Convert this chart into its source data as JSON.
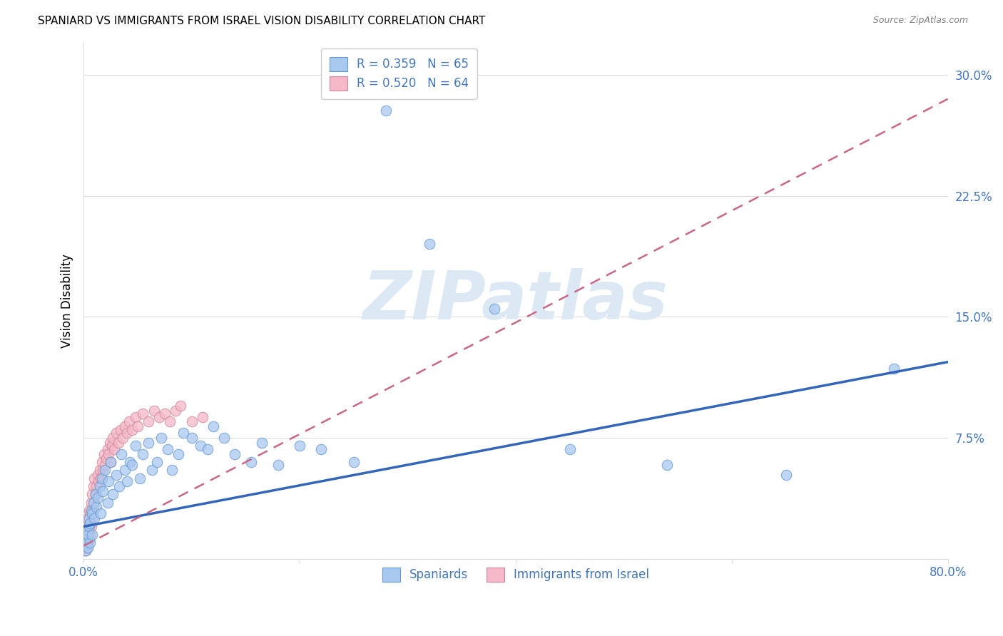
{
  "title": "SPANIARD VS IMMIGRANTS FROM ISRAEL VISION DISABILITY CORRELATION CHART",
  "source": "Source: ZipAtlas.com",
  "ylabel_label": "Vision Disability",
  "xlim": [
    0.0,
    0.8
  ],
  "ylim": [
    0.0,
    0.32
  ],
  "xticks": [
    0.0,
    0.2,
    0.4,
    0.6,
    0.8
  ],
  "xtick_labels": [
    "0.0%",
    "",
    "",
    "",
    "80.0%"
  ],
  "ytick_labels": [
    "",
    "7.5%",
    "15.0%",
    "22.5%",
    "30.0%"
  ],
  "ytick_values": [
    0.0,
    0.075,
    0.15,
    0.225,
    0.3
  ],
  "legend_blue_label": "R = 0.359   N = 65",
  "legend_pink_label": "R = 0.520   N = 64",
  "legend_spaniards": "Spaniards",
  "legend_immigrants": "Immigrants from Israel",
  "blue_color": "#a8c8f0",
  "blue_edge_color": "#6699cc",
  "blue_line_color": "#3366bb",
  "pink_color": "#f5b8c8",
  "pink_edge_color": "#cc8899",
  "pink_line_color": "#cc6688",
  "axis_color": "#4477bb",
  "watermark_color": "#dde8f5",
  "grid_color": "#dddddd",
  "spaniards_x": [
    0.001,
    0.002,
    0.002,
    0.003,
    0.003,
    0.004,
    0.004,
    0.005,
    0.005,
    0.006,
    0.006,
    0.007,
    0.008,
    0.008,
    0.009,
    0.01,
    0.011,
    0.012,
    0.013,
    0.015,
    0.016,
    0.017,
    0.018,
    0.02,
    0.022,
    0.023,
    0.025,
    0.027,
    0.03,
    0.033,
    0.035,
    0.038,
    0.04,
    0.043,
    0.045,
    0.048,
    0.052,
    0.055,
    0.06,
    0.063,
    0.068,
    0.072,
    0.078,
    0.082,
    0.088,
    0.092,
    0.1,
    0.108,
    0.115,
    0.12,
    0.13,
    0.14,
    0.155,
    0.165,
    0.18,
    0.2,
    0.22,
    0.25,
    0.28,
    0.32,
    0.38,
    0.45,
    0.54,
    0.65,
    0.75
  ],
  "spaniards_y": [
    0.008,
    0.005,
    0.012,
    0.01,
    0.018,
    0.007,
    0.015,
    0.02,
    0.025,
    0.01,
    0.022,
    0.03,
    0.015,
    0.028,
    0.035,
    0.025,
    0.04,
    0.032,
    0.038,
    0.045,
    0.028,
    0.05,
    0.042,
    0.055,
    0.035,
    0.048,
    0.06,
    0.04,
    0.052,
    0.045,
    0.065,
    0.055,
    0.048,
    0.06,
    0.058,
    0.07,
    0.05,
    0.065,
    0.072,
    0.055,
    0.06,
    0.075,
    0.068,
    0.055,
    0.065,
    0.078,
    0.075,
    0.07,
    0.068,
    0.082,
    0.075,
    0.065,
    0.06,
    0.072,
    0.058,
    0.07,
    0.068,
    0.06,
    0.278,
    0.195,
    0.155,
    0.068,
    0.058,
    0.052,
    0.118
  ],
  "immigrants_x": [
    0.0005,
    0.001,
    0.001,
    0.001,
    0.002,
    0.002,
    0.002,
    0.003,
    0.003,
    0.003,
    0.004,
    0.004,
    0.004,
    0.005,
    0.005,
    0.005,
    0.006,
    0.006,
    0.007,
    0.007,
    0.008,
    0.008,
    0.009,
    0.009,
    0.01,
    0.01,
    0.011,
    0.012,
    0.013,
    0.014,
    0.015,
    0.016,
    0.017,
    0.018,
    0.019,
    0.02,
    0.021,
    0.022,
    0.023,
    0.024,
    0.025,
    0.026,
    0.027,
    0.028,
    0.03,
    0.032,
    0.034,
    0.036,
    0.038,
    0.04,
    0.042,
    0.045,
    0.048,
    0.05,
    0.055,
    0.06,
    0.065,
    0.07,
    0.075,
    0.08,
    0.085,
    0.09,
    0.1,
    0.11
  ],
  "immigrants_y": [
    0.005,
    0.008,
    0.01,
    0.015,
    0.005,
    0.012,
    0.018,
    0.01,
    0.015,
    0.02,
    0.008,
    0.018,
    0.025,
    0.012,
    0.02,
    0.03,
    0.015,
    0.028,
    0.02,
    0.035,
    0.025,
    0.04,
    0.03,
    0.045,
    0.035,
    0.05,
    0.04,
    0.045,
    0.052,
    0.048,
    0.055,
    0.05,
    0.06,
    0.055,
    0.065,
    0.058,
    0.062,
    0.068,
    0.065,
    0.072,
    0.06,
    0.07,
    0.075,
    0.068,
    0.078,
    0.072,
    0.08,
    0.075,
    0.082,
    0.078,
    0.085,
    0.08,
    0.088,
    0.082,
    0.09,
    0.085,
    0.092,
    0.088,
    0.09,
    0.085,
    0.092,
    0.095,
    0.085,
    0.088
  ],
  "blue_line_x0": 0.0,
  "blue_line_y0": 0.02,
  "blue_line_x1": 0.8,
  "blue_line_y1": 0.122,
  "pink_line_x0": 0.0,
  "pink_line_y0": 0.008,
  "pink_line_x1": 0.8,
  "pink_line_y1": 0.285
}
